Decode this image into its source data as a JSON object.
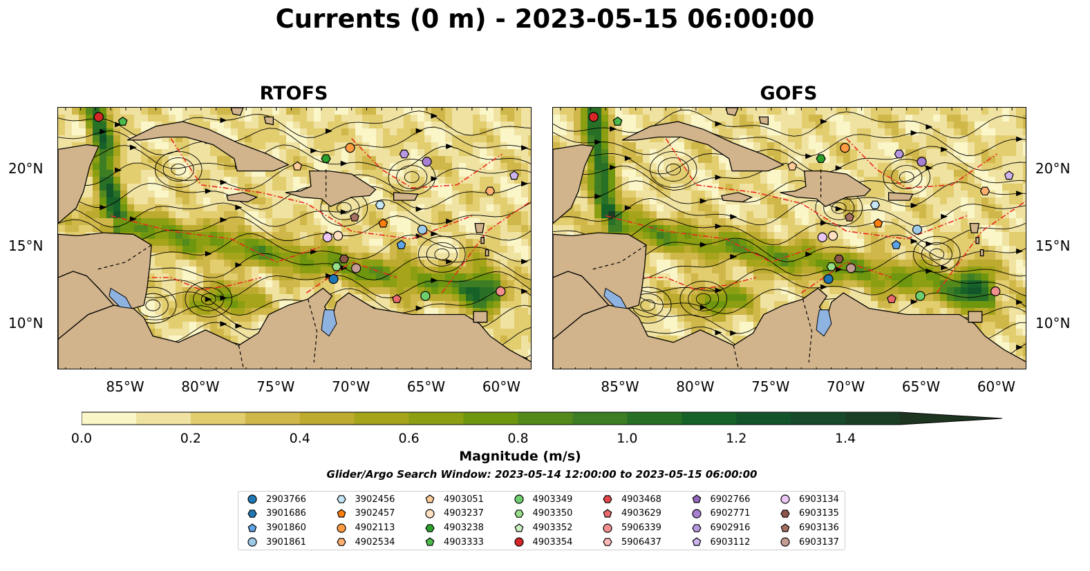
{
  "title": "Currents (0 m) - 2023-05-15 06:00:00",
  "panels": [
    {
      "name": "RTOFS"
    },
    {
      "name": "GOFS"
    }
  ],
  "axes": {
    "lon_ticks": [
      "85°W",
      "80°W",
      "75°W",
      "70°W",
      "65°W",
      "60°W"
    ],
    "lat_ticks": [
      "20°N",
      "15°N",
      "10°N"
    ],
    "lon_range": [
      -89.5,
      -58.0
    ],
    "lat_range": [
      7.0,
      24.0
    ]
  },
  "colorbar": {
    "label": "Magnitude (m/s)",
    "ticks": [
      "0.0",
      "0.2",
      "0.4",
      "0.6",
      "0.8",
      "1.0",
      "1.2",
      "1.4"
    ],
    "range": [
      0.0,
      1.5
    ],
    "extend": "max",
    "colors": [
      "#fbf6c8",
      "#f0e3a2",
      "#e2cd6f",
      "#d0b74a",
      "#bcab2f",
      "#a5a41a",
      "#8c9f12",
      "#6f960f",
      "#54891b",
      "#3d7d24",
      "#287026",
      "#176229",
      "#13552b",
      "#174a2a",
      "#1a3e24",
      "#1d3420"
    ]
  },
  "search_window": "Glider/Argo Search Window: 2023-05-14 12:00:00 to 2023-05-15 06:00:00",
  "land_color": "#d2b48c",
  "lake_color": "#8eb3e0",
  "legend": [
    {
      "id": "2903766",
      "color": "#1f77b4",
      "marker": "circle"
    },
    {
      "id": "3901686",
      "color": "#1f77b4",
      "marker": "hexagon"
    },
    {
      "id": "3901860",
      "color": "#5da5e8",
      "marker": "pentagon"
    },
    {
      "id": "3901861",
      "color": "#9ecae9",
      "marker": "circle"
    },
    {
      "id": "3902456",
      "color": "#c6e6f6",
      "marker": "hexagon"
    },
    {
      "id": "3902457",
      "color": "#ff7f0e",
      "marker": "pentagon"
    },
    {
      "id": "4902113",
      "color": "#ff9c42",
      "marker": "circle"
    },
    {
      "id": "4902534",
      "color": "#ffb070",
      "marker": "hexagon"
    },
    {
      "id": "4903051",
      "color": "#ffcc99",
      "marker": "pentagon"
    },
    {
      "id": "4903237",
      "color": "#ffe0c0",
      "marker": "circle"
    },
    {
      "id": "4903238",
      "color": "#2ca02c",
      "marker": "hexagon"
    },
    {
      "id": "4903333",
      "color": "#4cbb4c",
      "marker": "pentagon"
    },
    {
      "id": "4903349",
      "color": "#6fcf6f",
      "marker": "circle"
    },
    {
      "id": "4903350",
      "color": "#98df8a",
      "marker": "hexagon"
    },
    {
      "id": "4903352",
      "color": "#c8f0c0",
      "marker": "pentagon"
    },
    {
      "id": "4903354",
      "color": "#d62728",
      "marker": "circle"
    },
    {
      "id": "4903468",
      "color": "#e0464a",
      "marker": "hexagon"
    },
    {
      "id": "4903629",
      "color": "#ea6a6c",
      "marker": "pentagon"
    },
    {
      "id": "5906339",
      "color": "#f28e8e",
      "marker": "circle"
    },
    {
      "id": "5906437",
      "color": "#ffb8b8",
      "marker": "hexagon"
    },
    {
      "id": "6902766",
      "color": "#9467bd",
      "marker": "pentagon"
    },
    {
      "id": "6902771",
      "color": "#a67fd0",
      "marker": "circle"
    },
    {
      "id": "6902916",
      "color": "#b898e0",
      "marker": "hexagon"
    },
    {
      "id": "6903112",
      "color": "#cdb4ee",
      "marker": "pentagon"
    },
    {
      "id": "6903134",
      "color": "#ecc7f5",
      "marker": "circle"
    },
    {
      "id": "6903135",
      "color": "#8c564b",
      "marker": "hexagon"
    },
    {
      "id": "6903136",
      "color": "#a56f62",
      "marker": "pentagon"
    },
    {
      "id": "6903137",
      "color": "#c49c94",
      "marker": "circle"
    }
  ],
  "floats": [
    {
      "id": "4903354",
      "lon": -86.8,
      "lat": 23.4
    },
    {
      "id": "4903333",
      "lon": -85.2,
      "lat": 23.1
    },
    {
      "id": "4903051",
      "lon": -73.6,
      "lat": 20.2
    },
    {
      "id": "4903238",
      "lon": -71.7,
      "lat": 20.7
    },
    {
      "id": "4902113",
      "lon": -70.1,
      "lat": 21.4
    },
    {
      "id": "6902916",
      "lon": -66.5,
      "lat": 21.0
    },
    {
      "id": "6902771",
      "lon": -65.0,
      "lat": 20.5
    },
    {
      "id": "6903112",
      "lon": -59.2,
      "lat": 19.6
    },
    {
      "id": "4902534",
      "lon": -60.8,
      "lat": 18.6
    },
    {
      "id": "3902456",
      "lon": -68.1,
      "lat": 17.7
    },
    {
      "id": "6903136",
      "lon": -69.8,
      "lat": 16.9
    },
    {
      "id": "3902457",
      "lon": -67.9,
      "lat": 16.5
    },
    {
      "id": "3901861",
      "lon": -65.3,
      "lat": 16.1
    },
    {
      "id": "6903134",
      "lon": -71.6,
      "lat": 15.6
    },
    {
      "id": "4903237",
      "lon": -70.9,
      "lat": 15.7
    },
    {
      "id": "3901860",
      "lon": -66.7,
      "lat": 15.1
    },
    {
      "id": "6903135",
      "lon": -70.5,
      "lat": 14.2
    },
    {
      "id": "4903350",
      "lon": -71.0,
      "lat": 13.7
    },
    {
      "id": "6903137",
      "lon": -69.7,
      "lat": 13.6
    },
    {
      "id": "2903766",
      "lon": -71.2,
      "lat": 12.9
    },
    {
      "id": "4903349",
      "lon": -65.1,
      "lat": 11.8
    },
    {
      "id": "4903629",
      "lon": -67.0,
      "lat": 11.6
    },
    {
      "id": "5906339",
      "lon": -60.1,
      "lat": 12.1
    }
  ]
}
